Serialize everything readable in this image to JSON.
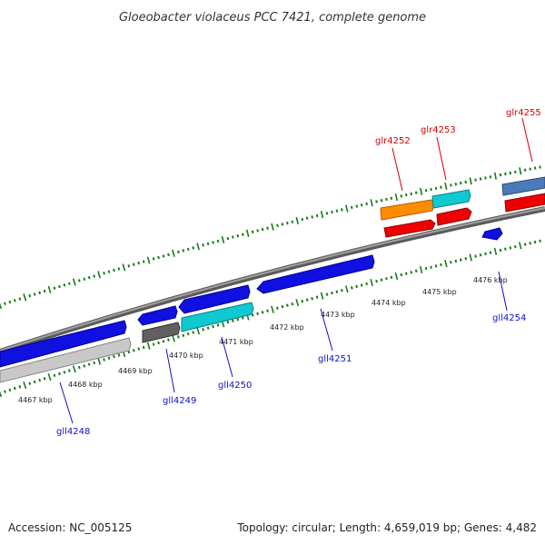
{
  "header": {
    "title": "Gloeobacter violaceus PCC 7421, complete genome"
  },
  "footer": {
    "accession": "Accession: NC_005125",
    "summary": "Topology: circular; Length: 4,659,019 bp; Genes: 4,482"
  },
  "ticks": [
    "4467 kbp",
    "4468 kbp",
    "4469 kbp",
    "4470 kbp",
    "4471 kbp",
    "4472 kbp",
    "4473 kbp",
    "4474 kbp",
    "4475 kbp",
    "4476 kbp"
  ],
  "genes": {
    "gll4248": "gll4248",
    "gll4249": "gll4249",
    "gll4250": "gll4250",
    "gll4251": "gll4251",
    "gll4254": "gll4254",
    "glr4252": "glr4252",
    "glr4253": "glr4253",
    "glr4255": "glr4255"
  },
  "colors": {
    "backbone": "#808080",
    "tick_green": "#1a7a1a",
    "blue": "#1010e0",
    "red": "#ee0000",
    "orange": "#ff8c00",
    "cyan": "#10c8d0",
    "steelblue": "#4a7ab8",
    "gray": "#606060",
    "lightgray": "#c8c8c8",
    "label_red": "#d40000",
    "label_blue": "#1010c0"
  }
}
